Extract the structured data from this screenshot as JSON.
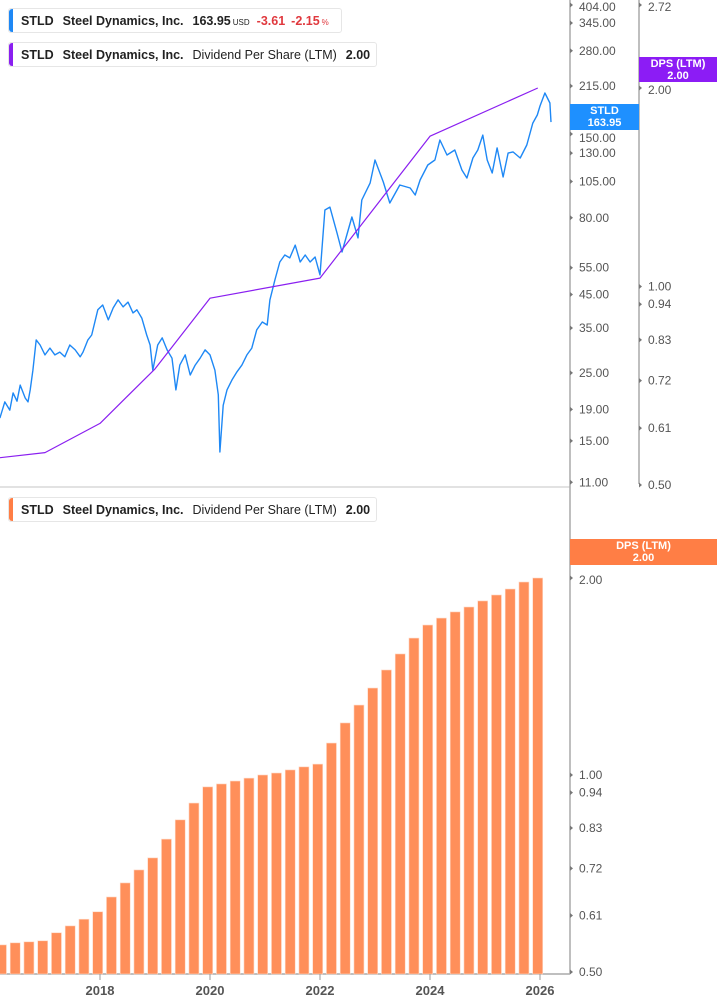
{
  "legend_price": {
    "ticker": "STLD",
    "company": "Steel Dynamics, Inc.",
    "price": "163.95",
    "currency": "USD",
    "change": "-3.61",
    "change_pct": "-2.15",
    "pct_sign": "%"
  },
  "legend_dps_top": {
    "ticker": "STLD",
    "company": "Steel Dynamics, Inc.",
    "metric": "Dividend Per Share (LTM)",
    "value": "2.00"
  },
  "legend_dps_bottom": {
    "ticker": "STLD",
    "company": "Steel Dynamics, Inc.",
    "metric": "Dividend Per Share (LTM)",
    "value": "2.00"
  },
  "tags": {
    "price": {
      "label": "STLD",
      "value": "163.95"
    },
    "dps_top": {
      "label": "DPS (LTM)",
      "value": "2.00"
    },
    "dps_bottom": {
      "label": "DPS (LTM)",
      "value": "2.00"
    }
  },
  "colors": {
    "price": "#1e88f5",
    "dps_line": "#8a1ff0",
    "dps_bars": "#ff8f5a",
    "dps_tag": "#ff7e45",
    "price_tag": "#1e90ff",
    "dps_top_tag": "#8c1cf5",
    "axis": "#aaaaaa",
    "down": "#e0393e"
  },
  "chart_data": [
    {
      "type": "line",
      "scale": "log",
      "x_units": "year",
      "price_axis_ticks": [
        "404.00",
        "345.00",
        "280.00",
        "215.00",
        "150.00",
        "130.00",
        "105.00",
        "80.00",
        "55.00",
        "45.00",
        "35.00",
        "25.00",
        "19.00",
        "15.00",
        "11.00"
      ],
      "dps_axis_ticks": [
        "2.72",
        "2.00",
        "1.00",
        "0.94",
        "0.83",
        "0.72",
        "0.61",
        "0.50"
      ],
      "series": [
        {
          "key": "price",
          "points": [
            [
              2016.18,
              17.8
            ],
            [
              2016.27,
              20.1
            ],
            [
              2016.36,
              18.9
            ],
            [
              2016.42,
              21.5
            ],
            [
              2016.49,
              20.2
            ],
            [
              2016.55,
              22.8
            ],
            [
              2016.64,
              20.7
            ],
            [
              2016.69,
              20.1
            ],
            [
              2016.73,
              22.0
            ],
            [
              2016.78,
              25.5
            ],
            [
              2016.84,
              32.0
            ],
            [
              2016.91,
              30.8
            ],
            [
              2017.0,
              28.6
            ],
            [
              2017.09,
              30.1
            ],
            [
              2017.18,
              28.6
            ],
            [
              2017.27,
              29.2
            ],
            [
              2017.36,
              28.2
            ],
            [
              2017.45,
              30.8
            ],
            [
              2017.55,
              29.7
            ],
            [
              2017.64,
              28.2
            ],
            [
              2017.69,
              29.2
            ],
            [
              2017.78,
              32.0
            ],
            [
              2017.85,
              33.2
            ],
            [
              2017.96,
              40.1
            ],
            [
              2018.05,
              41.6
            ],
            [
              2018.15,
              37.2
            ],
            [
              2018.24,
              40.7
            ],
            [
              2018.33,
              43.2
            ],
            [
              2018.42,
              41.0
            ],
            [
              2018.51,
              42.5
            ],
            [
              2018.6,
              39.2
            ],
            [
              2018.67,
              40.1
            ],
            [
              2018.76,
              37.7
            ],
            [
              2018.85,
              33.2
            ],
            [
              2018.91,
              30.8
            ],
            [
              2018.96,
              25.5
            ],
            [
              2019.05,
              30.8
            ],
            [
              2019.13,
              32.5
            ],
            [
              2019.22,
              29.7
            ],
            [
              2019.31,
              27.9
            ],
            [
              2019.38,
              22.0
            ],
            [
              2019.45,
              26.5
            ],
            [
              2019.55,
              28.6
            ],
            [
              2019.64,
              24.6
            ],
            [
              2019.73,
              26.5
            ],
            [
              2019.82,
              27.9
            ],
            [
              2019.91,
              29.7
            ],
            [
              2020.0,
              28.6
            ],
            [
              2020.09,
              25.5
            ],
            [
              2020.15,
              21.2
            ],
            [
              2020.18,
              13.8
            ],
            [
              2020.24,
              19.6
            ],
            [
              2020.31,
              22.0
            ],
            [
              2020.4,
              23.7
            ],
            [
              2020.49,
              25.2
            ],
            [
              2020.58,
              26.5
            ],
            [
              2020.67,
              28.6
            ],
            [
              2020.76,
              30.1
            ],
            [
              2020.85,
              34.5
            ],
            [
              2020.95,
              36.6
            ],
            [
              2021.04,
              35.8
            ],
            [
              2021.09,
              43.2
            ],
            [
              2021.18,
              50.2
            ],
            [
              2021.27,
              57.4
            ],
            [
              2021.36,
              60.5
            ],
            [
              2021.45,
              59.2
            ],
            [
              2021.55,
              65.2
            ],
            [
              2021.64,
              57.4
            ],
            [
              2021.73,
              60.5
            ],
            [
              2021.82,
              57.4
            ],
            [
              2021.91,
              59.6
            ],
            [
              2022.0,
              52.1
            ],
            [
              2022.09,
              84.8
            ],
            [
              2022.18,
              86.7
            ],
            [
              2022.31,
              71.4
            ],
            [
              2022.4,
              61.9
            ],
            [
              2022.58,
              80.5
            ],
            [
              2022.69,
              68.8
            ],
            [
              2022.76,
              91.4
            ],
            [
              2022.91,
              103.8
            ],
            [
              2023.0,
              123.4
            ],
            [
              2023.15,
              104.6
            ],
            [
              2023.27,
              89.4
            ],
            [
              2023.45,
              102.3
            ],
            [
              2023.64,
              100.0
            ],
            [
              2023.73,
              94.9
            ],
            [
              2023.82,
              106.2
            ],
            [
              2023.96,
              118.9
            ],
            [
              2024.09,
              123.4
            ],
            [
              2024.18,
              143.4
            ],
            [
              2024.31,
              128.1
            ],
            [
              2024.45,
              133.0
            ],
            [
              2024.58,
              114.5
            ],
            [
              2024.67,
              107.8
            ],
            [
              2024.78,
              125.3
            ],
            [
              2024.87,
              133.0
            ],
            [
              2024.96,
              148.8
            ],
            [
              2025.04,
              123.4
            ],
            [
              2025.13,
              111.9
            ],
            [
              2025.22,
              135.1
            ],
            [
              2025.33,
              108.6
            ],
            [
              2025.42,
              130.0
            ],
            [
              2025.51,
              131.1
            ],
            [
              2025.64,
              125.3
            ],
            [
              2025.76,
              138.1
            ],
            [
              2025.87,
              162.8
            ],
            [
              2025.95,
              172.9
            ],
            [
              2026.0,
              185.0
            ],
            [
              2026.09,
              204.0
            ],
            [
              2026.18,
              189.2
            ],
            [
              2026.2,
              163.95
            ]
          ]
        },
        {
          "key": "dps",
          "points": [
            [
              2016.18,
              0.55
            ],
            [
              2017.0,
              0.56
            ],
            [
              2018.0,
              0.62
            ],
            [
              2019.0,
              0.75
            ],
            [
              2020.0,
              0.96
            ],
            [
              2022.0,
              1.03
            ],
            [
              2024.0,
              1.69
            ],
            [
              2025.96,
              2.0
            ]
          ]
        }
      ]
    },
    {
      "type": "bar",
      "scale": "log",
      "ylim": [
        0.5,
        2.0
      ],
      "x_ticks": [
        "2018",
        "2020",
        "2022",
        "2024",
        "2026"
      ],
      "y_ticks": [
        "2.00",
        "1.00",
        "0.94",
        "0.83",
        "0.72",
        "0.61",
        "0.50"
      ],
      "categories": [
        "2016-03",
        "2016-06",
        "2016-09",
        "2016-12",
        "2017-03",
        "2017-06",
        "2017-09",
        "2017-12",
        "2018-03",
        "2018-06",
        "2018-09",
        "2018-12",
        "2019-03",
        "2019-06",
        "2019-09",
        "2019-12",
        "2020-03",
        "2020-06",
        "2020-09",
        "2020-12",
        "2021-03",
        "2021-06",
        "2021-09",
        "2021-12",
        "2022-03",
        "2022-06",
        "2022-09",
        "2022-12",
        "2023-03",
        "2023-06",
        "2023-09",
        "2023-12",
        "2024-03",
        "2024-06",
        "2024-09",
        "2024-12",
        "2025-03",
        "2025-06",
        "2025-09",
        "2025-12"
      ],
      "values": [
        0.55,
        0.554,
        0.556,
        0.558,
        0.574,
        0.588,
        0.602,
        0.618,
        0.651,
        0.684,
        0.716,
        0.747,
        0.798,
        0.854,
        0.906,
        0.959,
        0.969,
        0.979,
        0.989,
        1.0,
        1.007,
        1.018,
        1.029,
        1.039,
        1.119,
        1.201,
        1.279,
        1.358,
        1.447,
        1.531,
        1.619,
        1.695,
        1.737,
        1.775,
        1.806,
        1.845,
        1.884,
        1.924,
        1.972,
        2.0
      ]
    }
  ]
}
